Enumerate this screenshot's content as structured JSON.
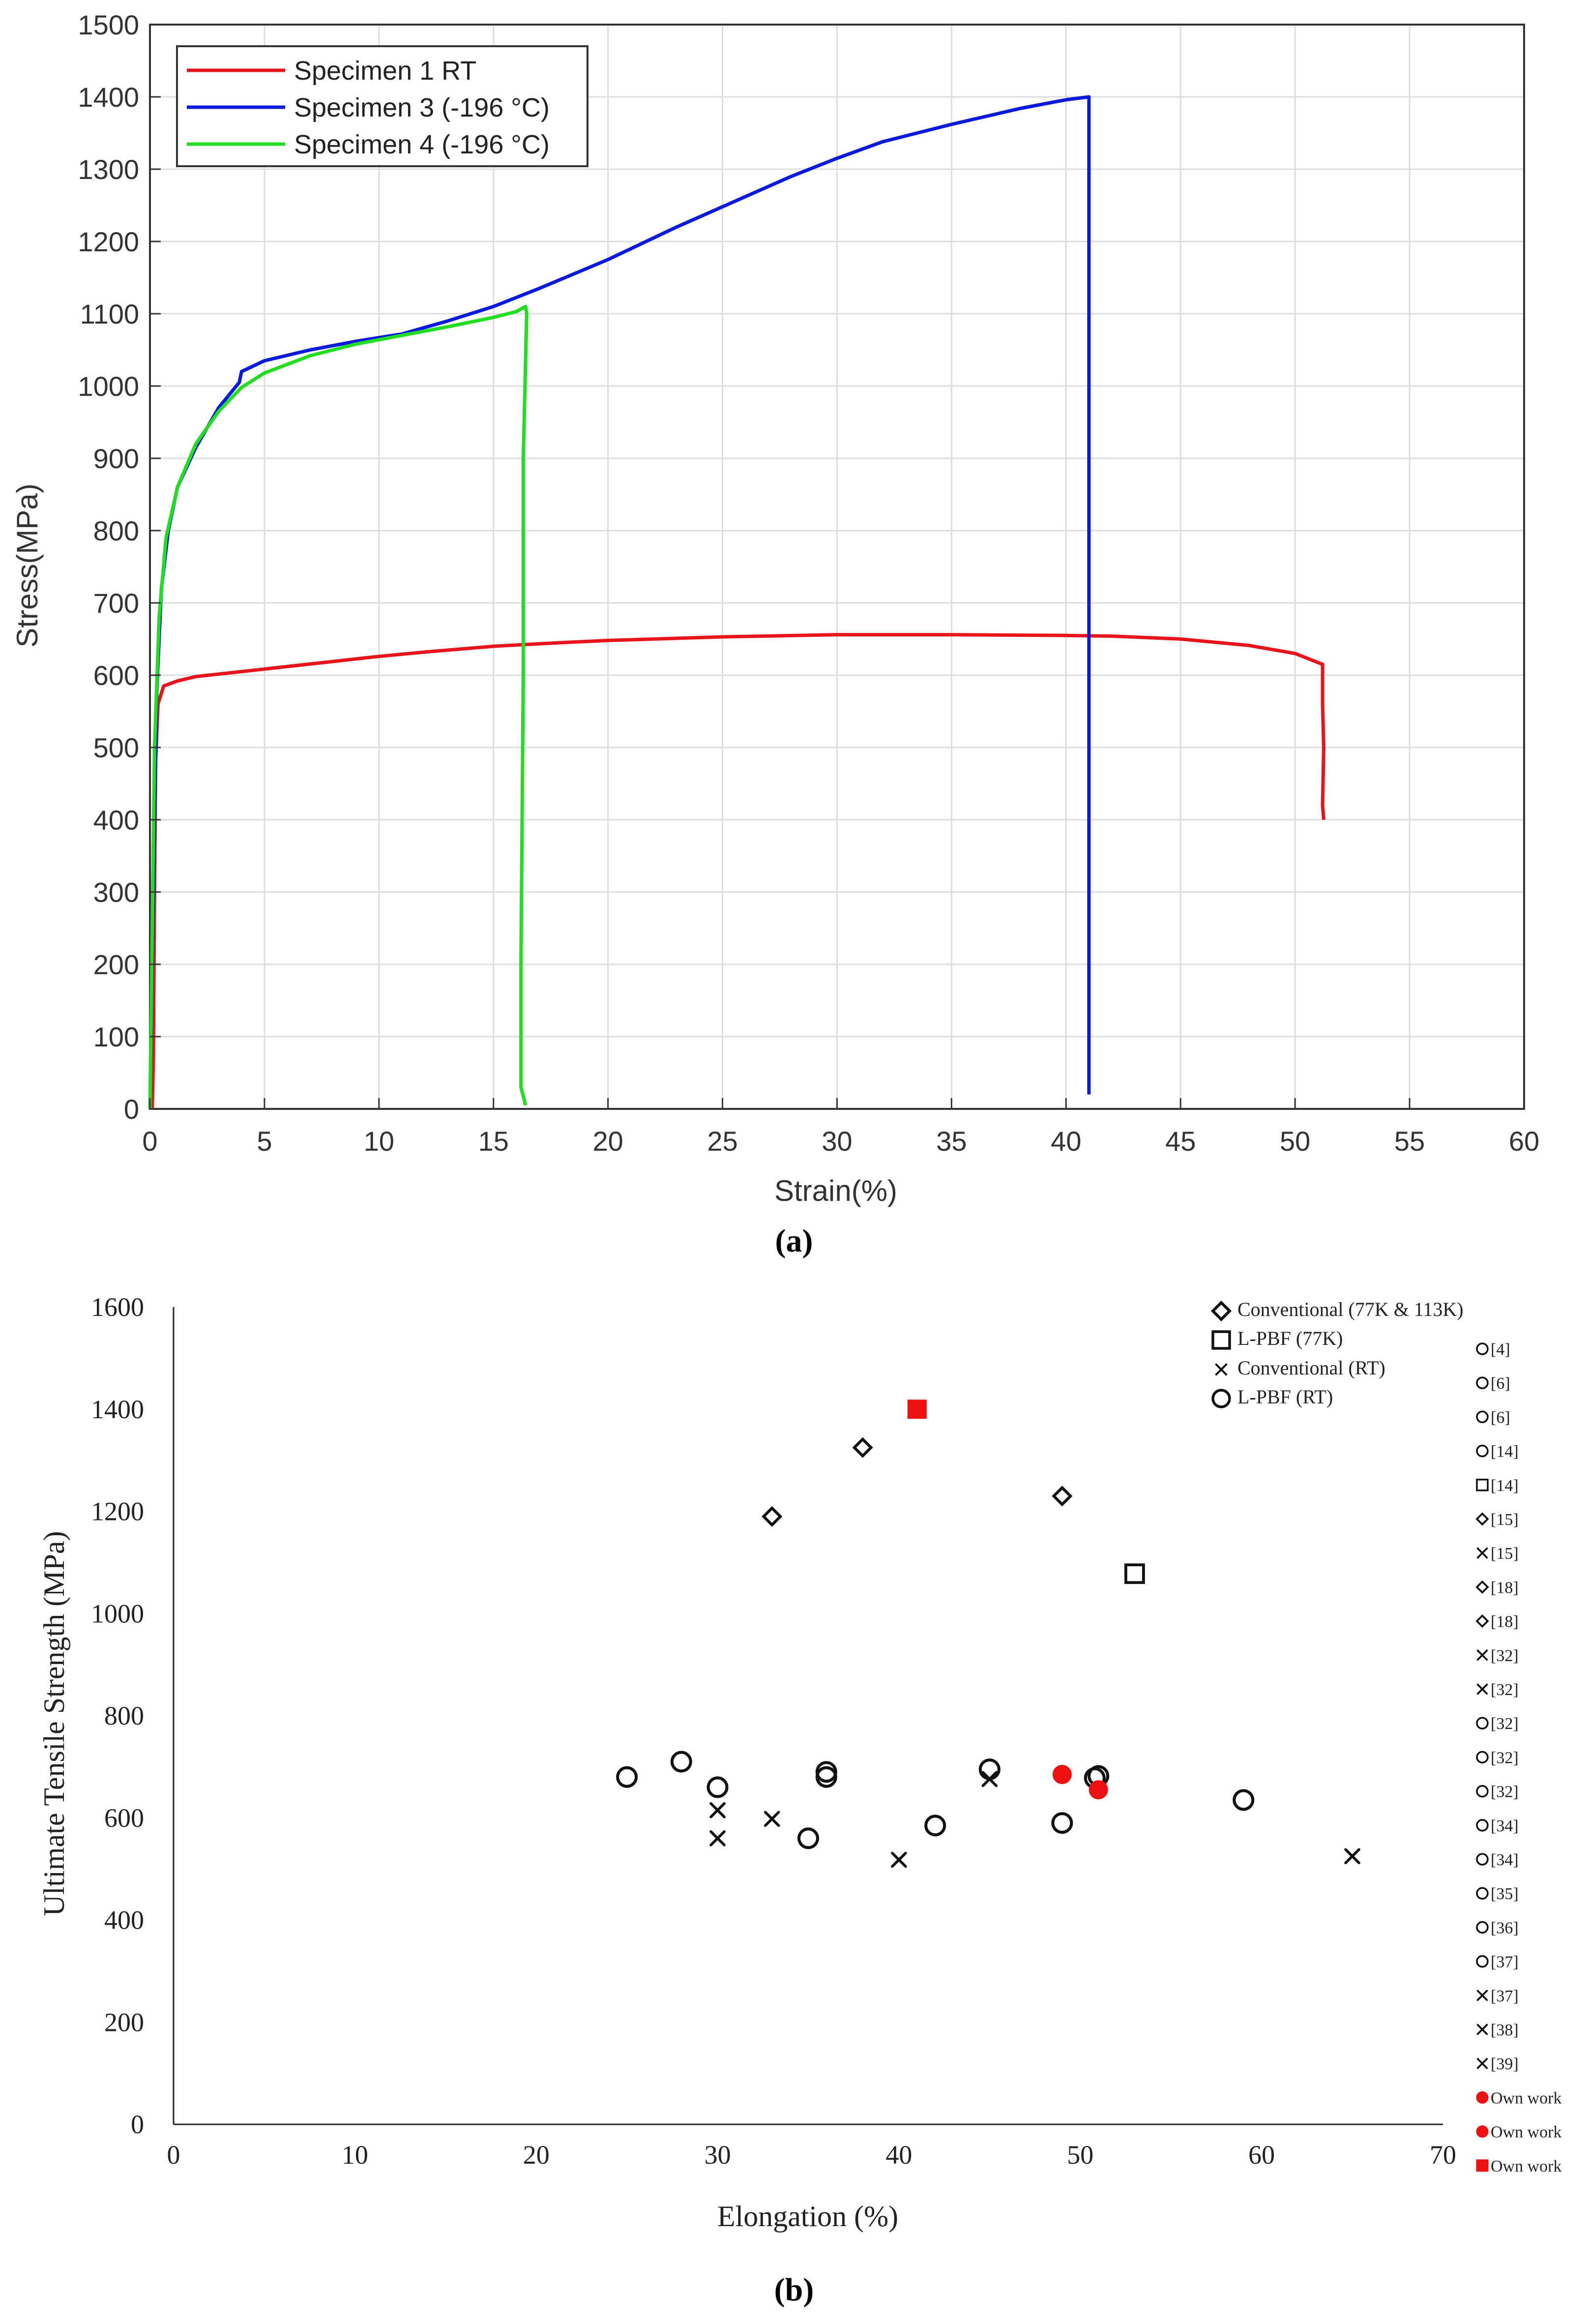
{
  "chart_data": [
    {
      "id": "a",
      "panel_label": "(a)",
      "type": "line",
      "title": "",
      "xlabel": "Strain(%)",
      "ylabel": "Stress(MPa)",
      "xlim": [
        0,
        60
      ],
      "ylim": [
        0,
        1500
      ],
      "xticks": [
        0,
        5,
        10,
        15,
        20,
        25,
        30,
        35,
        40,
        45,
        50,
        55,
        60
      ],
      "yticks": [
        0,
        100,
        200,
        300,
        400,
        500,
        600,
        700,
        800,
        900,
        1000,
        1100,
        1200,
        1300,
        1400,
        1500
      ],
      "grid": true,
      "legend_position": "top-left",
      "series": [
        {
          "name": "Specimen 1 RT",
          "color": "#e8141b",
          "points": [
            [
              0.1,
              0
            ],
            [
              0.15,
              70
            ],
            [
              0.2,
              300
            ],
            [
              0.25,
              480
            ],
            [
              0.35,
              560
            ],
            [
              0.6,
              585
            ],
            [
              1.2,
              592
            ],
            [
              2,
              598
            ],
            [
              4,
              605
            ],
            [
              6,
              612
            ],
            [
              8,
              619
            ],
            [
              10,
              626
            ],
            [
              12,
              632
            ],
            [
              15,
              640
            ],
            [
              18,
              645
            ],
            [
              20,
              648
            ],
            [
              25,
              653
            ],
            [
              30,
              656
            ],
            [
              35,
              656
            ],
            [
              40,
              655
            ],
            [
              42,
              654
            ],
            [
              45,
              650
            ],
            [
              48,
              641
            ],
            [
              50,
              630
            ],
            [
              51.2,
              615
            ],
            [
              51.2,
              560
            ],
            [
              51.25,
              500
            ],
            [
              51.2,
              420
            ],
            [
              51.25,
              400
            ]
          ]
        },
        {
          "name": "Specimen 3 (-196 °C)",
          "color": "#0a1adc",
          "points": [
            [
              0,
              0
            ],
            [
              0.1,
              200
            ],
            [
              0.2,
              400
            ],
            [
              0.3,
              580
            ],
            [
              0.5,
              720
            ],
            [
              0.8,
              800
            ],
            [
              1.2,
              860
            ],
            [
              2,
              915
            ],
            [
              3,
              970
            ],
            [
              3.9,
              1005
            ],
            [
              4,
              1020
            ],
            [
              5,
              1035
            ],
            [
              7,
              1050
            ],
            [
              9,
              1062
            ],
            [
              11,
              1072
            ],
            [
              13,
              1090
            ],
            [
              15,
              1110
            ],
            [
              17,
              1135
            ],
            [
              20,
              1175
            ],
            [
              23,
              1220
            ],
            [
              25,
              1248
            ],
            [
              28,
              1290
            ],
            [
              30,
              1315
            ],
            [
              32,
              1338
            ],
            [
              35,
              1362
            ],
            [
              38,
              1384
            ],
            [
              40,
              1396
            ],
            [
              41,
              1400
            ],
            [
              41,
              1398
            ],
            [
              41,
              20
            ]
          ]
        },
        {
          "name": "Specimen 4 (-196 °C)",
          "color": "#22dd22",
          "points": [
            [
              0,
              0
            ],
            [
              0.1,
              250
            ],
            [
              0.2,
              500
            ],
            [
              0.4,
              680
            ],
            [
              0.7,
              790
            ],
            [
              1.2,
              860
            ],
            [
              2,
              920
            ],
            [
              3,
              965
            ],
            [
              4,
              998
            ],
            [
              5,
              1018
            ],
            [
              7,
              1042
            ],
            [
              9,
              1058
            ],
            [
              11,
              1070
            ],
            [
              13,
              1082
            ],
            [
              15,
              1095
            ],
            [
              16,
              1103
            ],
            [
              16.4,
              1110
            ],
            [
              16.45,
              1100
            ],
            [
              16.3,
              900
            ],
            [
              16.3,
              600
            ],
            [
              16.2,
              200
            ],
            [
              16.2,
              30
            ],
            [
              16.4,
              5
            ]
          ]
        }
      ]
    },
    {
      "id": "b",
      "panel_label": "(b)",
      "type": "scatter",
      "title": "",
      "xlabel": "Elongation (%)",
      "ylabel": "Ultimate Tensile Strength  (MPa)",
      "xlim": [
        0,
        70
      ],
      "ylim": [
        0,
        1600
      ],
      "xticks": [
        0,
        10,
        20,
        30,
        40,
        50,
        60,
        70
      ],
      "yticks": [
        0,
        200,
        400,
        600,
        800,
        1000,
        1200,
        1400,
        1600
      ],
      "grid": false,
      "legend_position": "top-right",
      "legend": [
        {
          "marker": "diamond",
          "label": "Conventional  (77K & 113K)"
        },
        {
          "marker": "square",
          "label": "L-PBF  (77K)"
        },
        {
          "marker": "x",
          "label": "Conventional (RT)"
        },
        {
          "marker": "circle",
          "label": "L-PBF (RT)"
        }
      ],
      "points": [
        {
          "x": 25,
          "y": 680,
          "marker": "circle",
          "color": "#111111"
        },
        {
          "x": 28,
          "y": 710,
          "marker": "circle",
          "color": "#111111"
        },
        {
          "x": 30,
          "y": 660,
          "marker": "circle",
          "color": "#111111"
        },
        {
          "x": 36,
          "y": 690,
          "marker": "circle",
          "color": "#111111"
        },
        {
          "x": 36,
          "y": 680,
          "marker": "circle",
          "color": "#111111"
        },
        {
          "x": 35,
          "y": 560,
          "marker": "circle",
          "color": "#111111"
        },
        {
          "x": 42,
          "y": 585,
          "marker": "circle",
          "color": "#111111"
        },
        {
          "x": 45,
          "y": 695,
          "marker": "circle",
          "color": "#111111"
        },
        {
          "x": 49,
          "y": 590,
          "marker": "circle",
          "color": "#111111"
        },
        {
          "x": 50.8,
          "y": 678,
          "marker": "circle",
          "color": "#111111"
        },
        {
          "x": 51,
          "y": 682,
          "marker": "circle",
          "color": "#111111"
        },
        {
          "x": 59,
          "y": 635,
          "marker": "circle",
          "color": "#111111"
        },
        {
          "x": 30,
          "y": 615,
          "marker": "x",
          "color": "#111111"
        },
        {
          "x": 30,
          "y": 560,
          "marker": "x",
          "color": "#111111"
        },
        {
          "x": 33,
          "y": 598,
          "marker": "x",
          "color": "#111111"
        },
        {
          "x": 40,
          "y": 518,
          "marker": "x",
          "color": "#111111"
        },
        {
          "x": 45,
          "y": 676,
          "marker": "x",
          "color": "#111111"
        },
        {
          "x": 65,
          "y": 525,
          "marker": "x",
          "color": "#111111"
        },
        {
          "x": 33,
          "y": 1190,
          "marker": "diamond",
          "color": "#111111"
        },
        {
          "x": 38,
          "y": 1325,
          "marker": "diamond",
          "color": "#111111"
        },
        {
          "x": 49,
          "y": 1230,
          "marker": "diamond",
          "color": "#111111"
        },
        {
          "x": 53,
          "y": 1078,
          "marker": "square",
          "color": "#111111"
        },
        {
          "x": 41,
          "y": 1400,
          "marker": "square-filled",
          "color": "#ee1111"
        },
        {
          "x": 49,
          "y": 685,
          "marker": "circle-filled",
          "color": "#ee1111"
        },
        {
          "x": 51,
          "y": 655,
          "marker": "circle-filled",
          "color": "#ee1111"
        }
      ],
      "reference_list": [
        {
          "marker": "circle",
          "color": "#111111",
          "label": "[4]"
        },
        {
          "marker": "circle",
          "color": "#111111",
          "label": "[6]"
        },
        {
          "marker": "circle",
          "color": "#111111",
          "label": "[6]"
        },
        {
          "marker": "circle",
          "color": "#111111",
          "label": "[14]"
        },
        {
          "marker": "square",
          "color": "#111111",
          "label": "[14]"
        },
        {
          "marker": "diamond",
          "color": "#111111",
          "label": "[15]"
        },
        {
          "marker": "x",
          "color": "#111111",
          "label": "[15]"
        },
        {
          "marker": "diamond",
          "color": "#111111",
          "label": "[18]"
        },
        {
          "marker": "diamond",
          "color": "#111111",
          "label": "[18]"
        },
        {
          "marker": "x",
          "color": "#111111",
          "label": "[32]"
        },
        {
          "marker": "x",
          "color": "#111111",
          "label": "[32]"
        },
        {
          "marker": "circle",
          "color": "#111111",
          "label": "[32]"
        },
        {
          "marker": "circle",
          "color": "#111111",
          "label": "[32]"
        },
        {
          "marker": "circle",
          "color": "#111111",
          "label": "[32]"
        },
        {
          "marker": "circle",
          "color": "#111111",
          "label": "[34]"
        },
        {
          "marker": "circle",
          "color": "#111111",
          "label": "[34]"
        },
        {
          "marker": "circle",
          "color": "#111111",
          "label": "[35]"
        },
        {
          "marker": "circle",
          "color": "#111111",
          "label": "[36]"
        },
        {
          "marker": "circle",
          "color": "#111111",
          "label": "[37]"
        },
        {
          "marker": "x",
          "color": "#111111",
          "label": "[37]"
        },
        {
          "marker": "x",
          "color": "#111111",
          "label": "[38]"
        },
        {
          "marker": "x",
          "color": "#111111",
          "label": "[39]"
        },
        {
          "marker": "circle-filled",
          "color": "#ee1111",
          "label": "Own work"
        },
        {
          "marker": "circle-filled",
          "color": "#ee1111",
          "label": "Own work"
        },
        {
          "marker": "square-filled",
          "color": "#ee1111",
          "label": "Own work"
        }
      ]
    }
  ]
}
